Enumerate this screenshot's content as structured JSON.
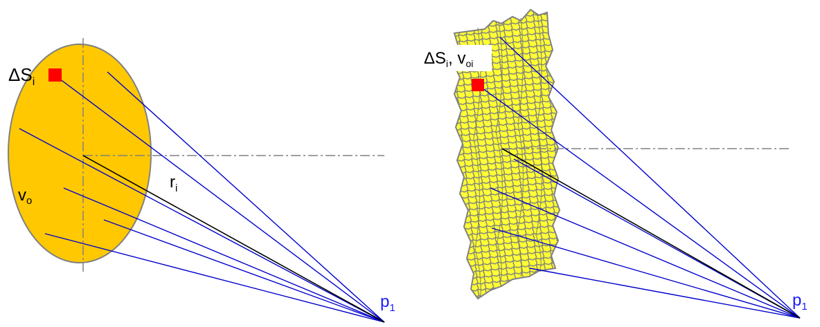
{
  "left_panel": {
    "surface_label_main": "ΔS",
    "surface_label_sub": "i",
    "volume_label_main": "v",
    "volume_label_sub": "o",
    "distance_label_main": "r",
    "distance_label_sub": "i",
    "point_label_main": "p",
    "point_label_sub": "1"
  },
  "right_panel": {
    "surface_label_main": "ΔS",
    "surface_label_sub": "i",
    "surface_label_sep": ", v",
    "surface_label_sub2": "oi",
    "point_label_main": "p",
    "point_label_sub": "1"
  },
  "colors": {
    "ellipse_fill": "#ffc800",
    "ellipse_stroke": "#808080",
    "mesh_fill": "#ffff33",
    "mesh_stroke": "#808080",
    "ray": "#0000cc",
    "radius_line": "#000000",
    "marker": "#ff0000",
    "axis_dashdot": "#808080",
    "point_label": "#1a1aff"
  }
}
